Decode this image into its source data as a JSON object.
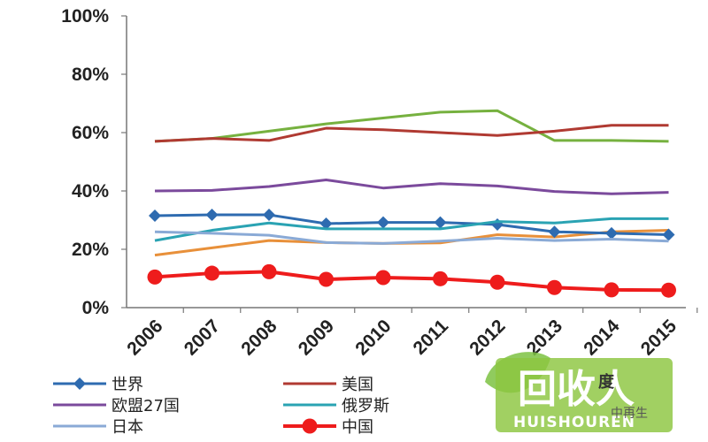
{
  "chart_data": {
    "type": "line",
    "categories": [
      "2006",
      "2007",
      "2008",
      "2009",
      "2010",
      "2011",
      "2012",
      "2013",
      "2014",
      "2015"
    ],
    "y_ticks": [
      "0%",
      "20%",
      "40%",
      "60%",
      "80%",
      "100%"
    ],
    "ylim": [
      0,
      100
    ],
    "grid": false,
    "legend_position": "bottom",
    "series": [
      {
        "name": "世界",
        "color": "#2e6bb0",
        "marker": "diamond",
        "values": [
          31.5,
          31.8,
          31.8,
          28.8,
          29.2,
          29.2,
          28.5,
          26.0,
          25.5,
          25.0
        ]
      },
      {
        "name": "美国",
        "color": "#b03a32",
        "marker": "none",
        "values": [
          57.0,
          58.0,
          57.3,
          61.5,
          61.0,
          60.0,
          59.0,
          60.5,
          62.5,
          62.5
        ]
      },
      {
        "name": "欧盟27国",
        "color": "#7b4a9c",
        "marker": "none",
        "values": [
          40.0,
          40.2,
          41.5,
          43.8,
          41.0,
          42.5,
          41.7,
          39.8,
          39.0,
          39.5
        ]
      },
      {
        "name": "俄罗斯",
        "color": "#2aa3b3",
        "marker": "none",
        "values": [
          23.0,
          26.5,
          29.0,
          27.0,
          27.0,
          27.0,
          29.5,
          29.0,
          30.5,
          30.5
        ]
      },
      {
        "name": "日本",
        "color": "#8aaad6",
        "marker": "none",
        "values": [
          26.0,
          25.5,
          24.8,
          22.3,
          22.0,
          22.8,
          23.8,
          23.0,
          23.5,
          22.8
        ]
      },
      {
        "name": "中国",
        "color": "#ee1c1c",
        "marker": "circle",
        "values": [
          10.5,
          11.8,
          12.3,
          9.7,
          10.3,
          9.9,
          8.7,
          6.9,
          6.1,
          6.0
        ]
      },
      {
        "name": "",
        "color": "#e8903a",
        "marker": "none",
        "values": [
          18.0,
          20.5,
          23.0,
          22.3,
          22.0,
          22.2,
          25.0,
          24.2,
          26.0,
          26.5
        ]
      },
      {
        "name": "",
        "color": "#76b13f",
        "marker": "none",
        "values": [
          57.0,
          58.0,
          60.5,
          63.0,
          65.0,
          67.0,
          67.5,
          57.3,
          57.3,
          57.0
        ]
      }
    ]
  },
  "watermark": {
    "logo_big": "回收人",
    "logo_small": "HUISHOUREN",
    "fragments": [
      "度",
      "中再生"
    ]
  }
}
